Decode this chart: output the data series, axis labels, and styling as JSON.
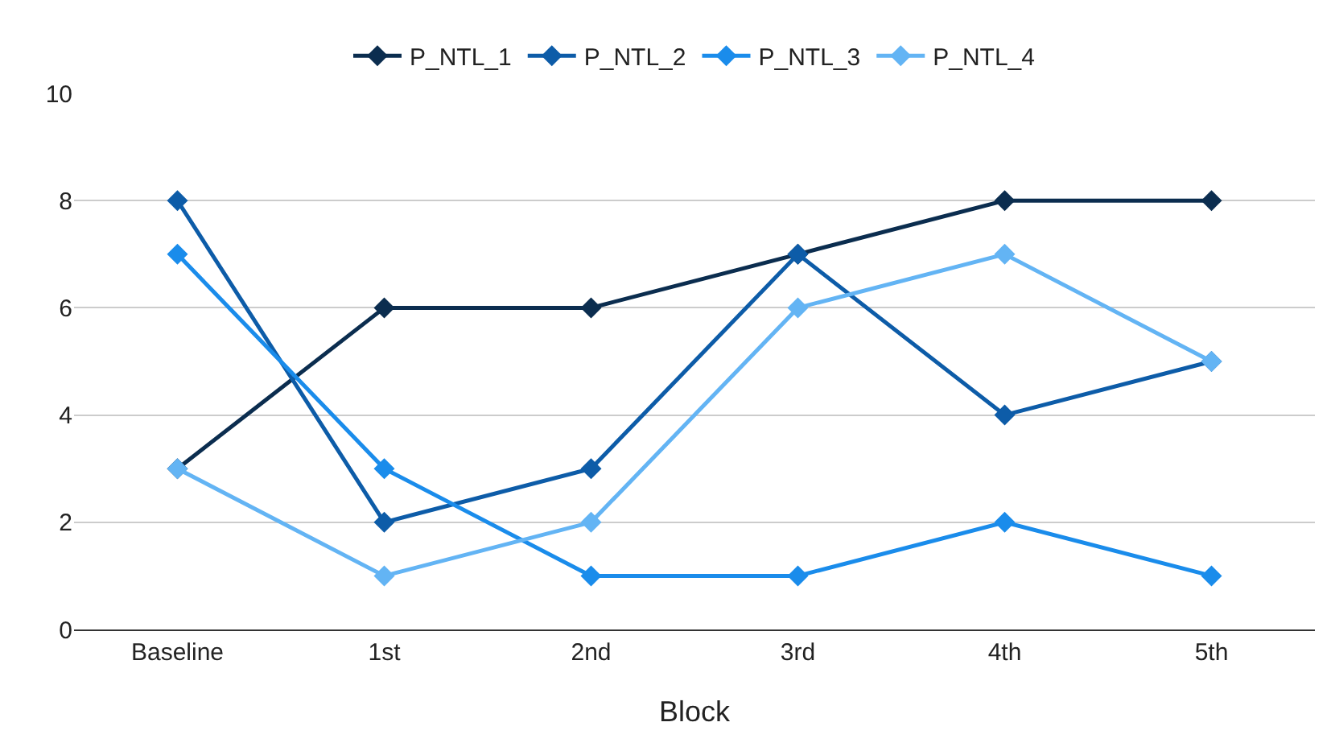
{
  "chart_data": {
    "type": "line",
    "xlabel": "Block",
    "categories": [
      "Baseline",
      "1st",
      "2nd",
      "3rd",
      "4th",
      "5th"
    ],
    "series": [
      {
        "name": "P_NTL_1",
        "color": "#0b2d4f",
        "values": [
          3,
          6,
          6,
          7,
          8,
          8
        ]
      },
      {
        "name": "P_NTL_2",
        "color": "#0d5ca8",
        "values": [
          8,
          2,
          3,
          7,
          4,
          5
        ]
      },
      {
        "name": "P_NTL_3",
        "color": "#1a8ceb",
        "values": [
          7,
          3,
          1,
          1,
          2,
          1
        ]
      },
      {
        "name": "P_NTL_4",
        "color": "#63b4f4",
        "values": [
          3,
          1,
          2,
          6,
          7,
          5
        ]
      }
    ],
    "ylim": [
      0,
      10
    ],
    "yticks": [
      0,
      2,
      4,
      6,
      8,
      10
    ],
    "grid": "y",
    "legend": "top",
    "marker": "diamond",
    "line_style": "solid"
  }
}
